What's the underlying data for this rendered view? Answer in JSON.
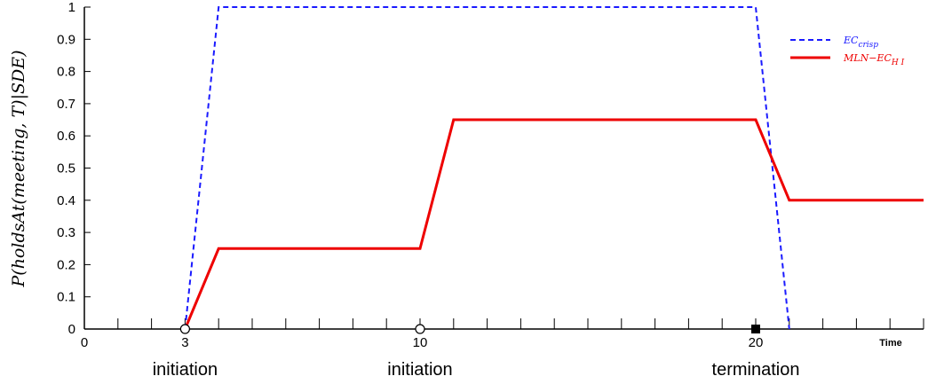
{
  "chart_data": {
    "type": "line",
    "xlabel": "Time",
    "ylabel": "P(holdsAt(meeting, T)|SDE)",
    "xlim": [
      0,
      25
    ],
    "ylim": [
      0,
      1
    ],
    "x_ticks": [
      0,
      3,
      10,
      20
    ],
    "y_ticks": [
      0,
      0.1,
      0.2,
      0.3,
      0.4,
      0.5,
      0.6,
      0.7,
      0.8,
      0.9,
      1
    ],
    "minor_x_ticks": [
      1,
      2,
      4,
      5,
      6,
      7,
      8,
      9,
      11,
      12,
      13,
      14,
      15,
      16,
      17,
      18,
      19,
      21,
      22,
      23,
      24,
      25
    ],
    "grid": false,
    "legend_position": "top-right",
    "series": [
      {
        "name": "EC_crisp",
        "label_main": "EC",
        "label_sub": "crisp",
        "color": "#1a1aff",
        "style": "dashed",
        "x": [
          3,
          4,
          20,
          21
        ],
        "y": [
          0,
          1,
          1,
          0
        ]
      },
      {
        "name": "MLN-EC_HI",
        "label_main": "MLN−EC",
        "label_sub": "H I",
        "color": "#ee0000",
        "style": "solid",
        "x": [
          3,
          4,
          10,
          11,
          20,
          21,
          25
        ],
        "y": [
          0,
          0.25,
          0.25,
          0.65,
          0.65,
          0.4,
          0.4
        ]
      }
    ],
    "markers": [
      {
        "x": 3,
        "shape": "open-circle"
      },
      {
        "x": 10,
        "shape": "open-circle"
      },
      {
        "x": 20,
        "shape": "filled-square"
      }
    ],
    "annotations": [
      {
        "x": 3,
        "text": "initiation"
      },
      {
        "x": 10,
        "text": "initiation"
      },
      {
        "x": 20,
        "text": "termination"
      }
    ]
  }
}
